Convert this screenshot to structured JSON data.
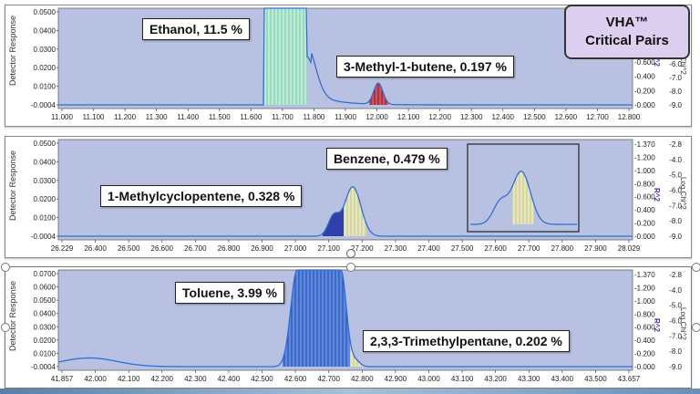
{
  "badge": {
    "line1": "VHA™",
    "line2": "Critical Pairs"
  },
  "panels": [
    {
      "y_axis_label": "Detector Response",
      "right_axis_label": "Log Chi^2",
      "r2_label": "R^2",
      "yticks": [
        "0.0500",
        "0.0400",
        "0.0300",
        "0.0200",
        "0.0100",
        "-0.0004"
      ],
      "r2ticks": [
        "0.600",
        "0.400",
        "0.200",
        "0.000"
      ],
      "chiticks": [
        "-6.0",
        "-7.0",
        "-8.0",
        "-9.0"
      ],
      "xticks": [
        "11.000",
        "11.100",
        "11.200",
        "11.300",
        "11.400",
        "11.500",
        "11.600",
        "11.700",
        "11.800",
        "11.900",
        "12.000",
        "12.100",
        "12.200",
        "12.300",
        "12.400",
        "12.500",
        "12.600",
        "12.700",
        "12.800"
      ],
      "callouts": [
        "Ethanol, 11.5 %",
        "3-Methyl-1-butene, 0.197 %"
      ]
    },
    {
      "y_axis_label": "Detector Response",
      "right_axis_label": "Log Chi^2",
      "r2_label": "R^2",
      "yticks": [
        "0.0500",
        "0.0400",
        "0.0300",
        "0.0200",
        "0.0100",
        "-0.0004"
      ],
      "r2ticks": [
        "1.370",
        "1.200",
        "1.000",
        "0.800",
        "0.600",
        "0.400",
        "0.200",
        "0.000"
      ],
      "chiticks": [
        "-2.8",
        "-4.0",
        "-5.0",
        "-6.0",
        "-7.0",
        "-8.0",
        "-9.0"
      ],
      "xticks": [
        "26.229",
        "26.400",
        "26.500",
        "26.600",
        "26.700",
        "26.800",
        "26.900",
        "27.000",
        "27.100",
        "27.200",
        "27.300",
        "27.400",
        "27.500",
        "27.600",
        "27.700",
        "27.800",
        "27.900",
        "28.029"
      ],
      "callouts": [
        "Benzene, 0.479 %",
        "1-Methylcyclopentene, 0.328 %"
      ]
    },
    {
      "y_axis_label": "Detector Response",
      "right_axis_label": "Log Chi^2",
      "r2_label": "R^2",
      "yticks": [
        "0.0700",
        "0.0600",
        "0.0500",
        "0.0400",
        "0.0300",
        "0.0200",
        "0.0100",
        "-0.0004"
      ],
      "r2ticks": [
        "1.370",
        "1.200",
        "1.000",
        "0.800",
        "0.600",
        "0.400",
        "0.200",
        "0.000"
      ],
      "chiticks": [
        "-2.8",
        "-4.0",
        "-5.0",
        "-6.0",
        "-7.0",
        "-8.0",
        "-9.0"
      ],
      "xticks": [
        "41.857",
        "42.000",
        "42.100",
        "42.200",
        "42.300",
        "42.400",
        "42.500",
        "42.600",
        "42.700",
        "42.800",
        "42.900",
        "43.000",
        "43.100",
        "43.200",
        "43.300",
        "43.400",
        "43.500",
        "43.657"
      ],
      "callouts": [
        "Toluene, 3.99 %",
        "2,3,3-Trimethylpentane, 0.202 %"
      ]
    }
  ],
  "colors": {
    "plot_bg": "#b9c1e2",
    "trace": "#2f6fd0",
    "ethanol_fill": "#8ee0b8",
    "benzene_fill": "#d8d990",
    "mcp_fill": "#1a2a9a",
    "toluene_fill": "#4a7ee0",
    "methylbutene_fill": "#d83a4a"
  }
}
